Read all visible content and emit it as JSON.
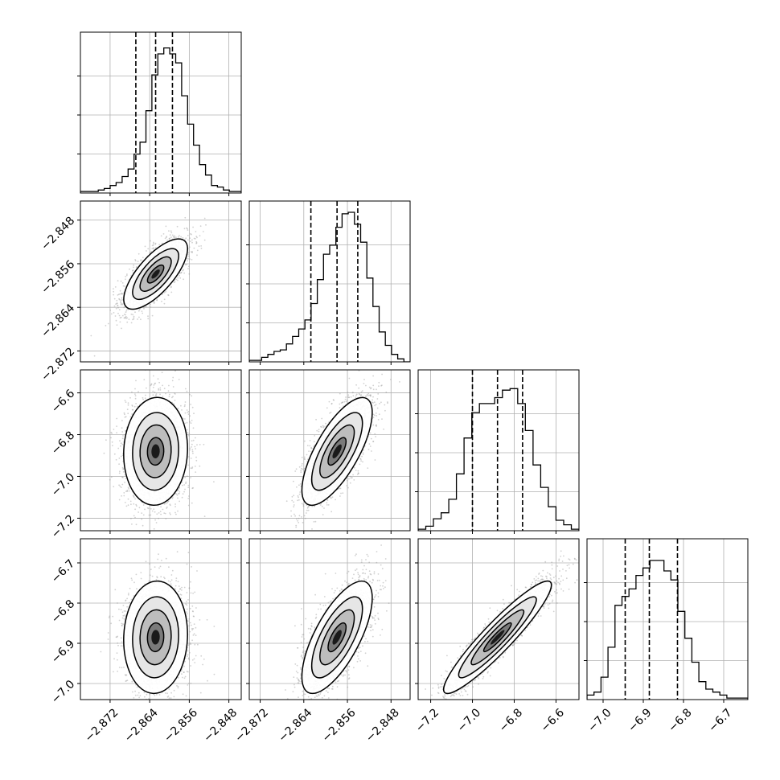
{
  "chart_data": {
    "type": "corner",
    "title": "",
    "parameters": [
      "",
      "",
      "",
      ""
    ],
    "ranges": [
      [
        -2.878,
        -2.8455
      ],
      [
        -2.874,
        -2.8445
      ],
      [
        -7.26,
        -6.49
      ],
      [
        -7.04,
        -6.64
      ]
    ],
    "x_ticks": [
      {
        "values": [
          -2.872,
          -2.864,
          -2.856,
          -2.848
        ],
        "labels": [
          "−2.872",
          "−2.864",
          "−2.856",
          "−2.848"
        ]
      },
      {
        "values": [
          -2.872,
          -2.864,
          -2.856,
          -2.848
        ],
        "labels": [
          "−2.872",
          "−2.864",
          "−2.856",
          "−2.848"
        ]
      },
      {
        "values": [
          -7.2,
          -7.0,
          -6.8,
          -6.6
        ],
        "labels": [
          "−7.2",
          "−7.0",
          "−6.8",
          "−6.6"
        ]
      },
      {
        "values": [
          -7.0,
          -6.9,
          -6.8,
          -6.7
        ],
        "labels": [
          "−7.0",
          "−6.9",
          "−6.8",
          "−6.7"
        ]
      }
    ],
    "y_ticks": [
      null,
      {
        "values": [
          -2.848,
          -2.856,
          -2.864,
          -2.872
        ],
        "labels": [
          "−2.848",
          "−2.856",
          "−2.864",
          "−2.872"
        ]
      },
      {
        "values": [
          -6.6,
          -6.8,
          -7.0,
          -7.2
        ],
        "labels": [
          "−6.6",
          "−6.8",
          "−7.0",
          "−7.2"
        ]
      },
      {
        "values": [
          -6.7,
          -6.8,
          -6.9,
          -7.0
        ],
        "labels": [
          "−6.7",
          "−6.8",
          "−6.9",
          "−7.0"
        ]
      }
    ],
    "quantiles": [
      [
        -2.8668,
        -2.8628,
        -2.8594
      ],
      [
        -2.8627,
        -2.8579,
        -2.8541
      ],
      [
        -7.0,
        -6.88,
        -6.76
      ],
      [
        -6.945,
        -6.885,
        -6.815
      ]
    ],
    "histograms": [
      {
        "counts": [
          0.01,
          0.01,
          0.01,
          0.02,
          0.03,
          0.05,
          0.07,
          0.11,
          0.16,
          0.26,
          0.34,
          0.55,
          0.79,
          0.93,
          0.97,
          0.93,
          0.87,
          0.65,
          0.46,
          0.32,
          0.19,
          0.12,
          0.05,
          0.04,
          0.02,
          0.01,
          0.01
        ]
      },
      {
        "counts": [
          0.01,
          0.01,
          0.03,
          0.05,
          0.07,
          0.08,
          0.12,
          0.17,
          0.22,
          0.28,
          0.39,
          0.55,
          0.72,
          0.78,
          0.9,
          0.99,
          1.0,
          0.92,
          0.8,
          0.56,
          0.37,
          0.2,
          0.11,
          0.05,
          0.02,
          0.0
        ]
      },
      {
        "counts": [
          0.01,
          0.03,
          0.08,
          0.12,
          0.21,
          0.38,
          0.62,
          0.79,
          0.85,
          0.85,
          0.89,
          0.94,
          0.95,
          0.85,
          0.67,
          0.44,
          0.29,
          0.16,
          0.07,
          0.04,
          0.01
        ]
      },
      {
        "counts": [
          0.03,
          0.05,
          0.15,
          0.35,
          0.63,
          0.69,
          0.74,
          0.83,
          0.88,
          0.93,
          0.93,
          0.86,
          0.8,
          0.59,
          0.41,
          0.25,
          0.12,
          0.07,
          0.05,
          0.03,
          0.01,
          0.01,
          0.01
        ]
      }
    ],
    "pairs": [
      {
        "row": 1,
        "col": 0,
        "mean": [
          -2.8628,
          -2.8579
        ],
        "sd": [
          0.003,
          0.003
        ],
        "rho": 0.72
      },
      {
        "row": 2,
        "col": 0,
        "mean": [
          -2.8628,
          -6.88
        ],
        "sd": [
          0.003,
          0.12
        ],
        "rho": 0.05
      },
      {
        "row": 2,
        "col": 1,
        "mean": [
          -2.8579,
          -6.88
        ],
        "sd": [
          0.003,
          0.12
        ],
        "rho": 0.72
      },
      {
        "row": 3,
        "col": 0,
        "mean": [
          -2.8628,
          -6.885
        ],
        "sd": [
          0.003,
          0.065
        ],
        "rho": 0.05
      },
      {
        "row": 3,
        "col": 1,
        "mean": [
          -2.8579,
          -6.885
        ],
        "sd": [
          0.003,
          0.065
        ],
        "rho": 0.7
      },
      {
        "row": 3,
        "col": 2,
        "mean": [
          -6.88,
          -6.885
        ],
        "sd": [
          0.12,
          0.065
        ],
        "rho": 0.93
      }
    ],
    "grid": true,
    "legend": "none",
    "colors": {
      "line": "#000000",
      "grid": "#b0b0b0",
      "points": "#9a9a9a"
    }
  }
}
